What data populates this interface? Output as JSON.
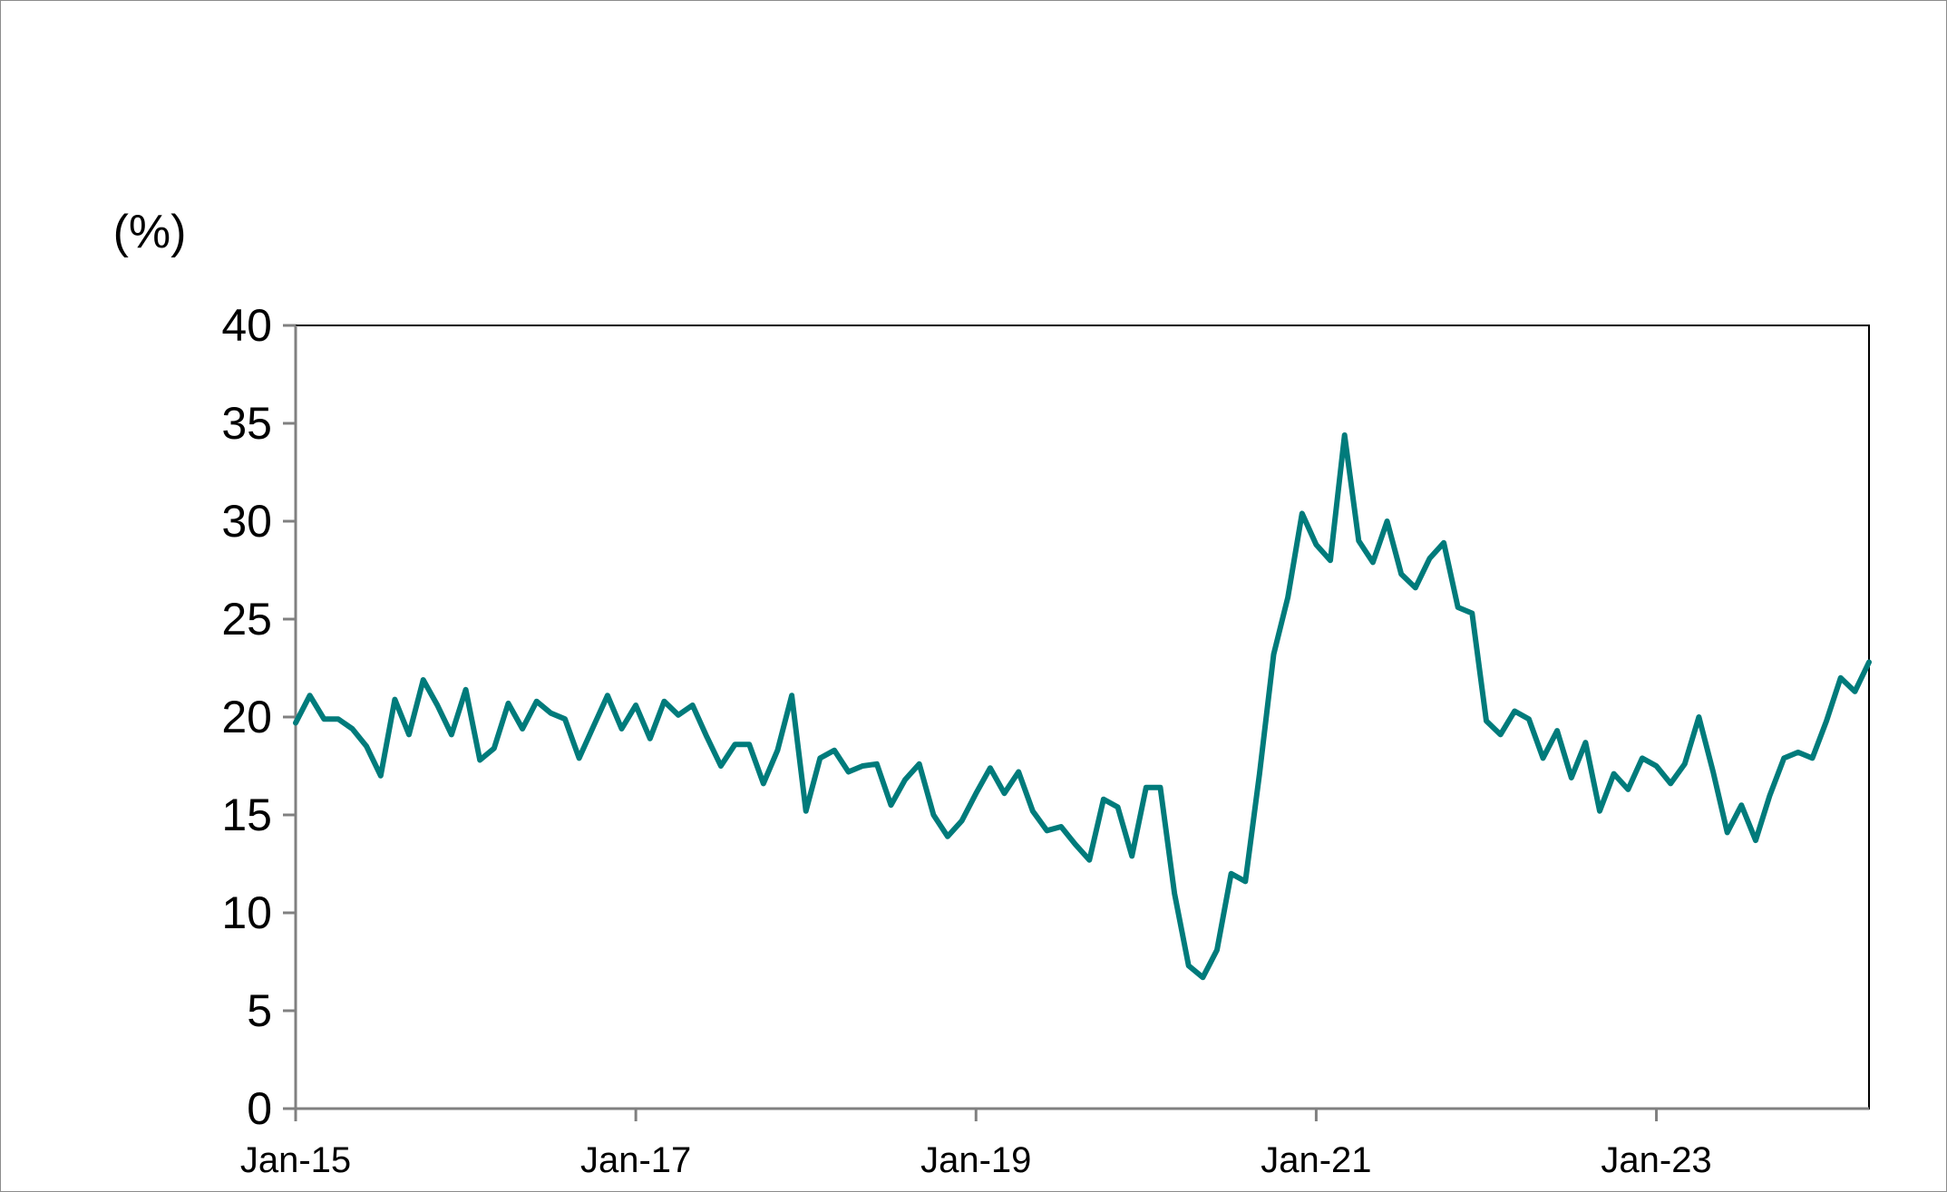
{
  "chart_data": {
    "type": "line",
    "unit_label": "(%)",
    "ylim": [
      0,
      40
    ],
    "yticks": [
      0,
      5,
      10,
      15,
      20,
      25,
      30,
      35,
      40
    ],
    "ytick_labels": [
      "0",
      "5",
      "10",
      "15",
      "20",
      "25",
      "30",
      "35",
      "40"
    ],
    "xticks": [
      "2015-01",
      "2017-01",
      "2019-01",
      "2021-01",
      "2023-01"
    ],
    "xtick_labels": [
      "Jan-15",
      "Jan-17",
      "Jan-19",
      "Jan-21",
      "Jan-23"
    ],
    "x_start": "2015-01",
    "x_end": "2024-04",
    "grid": false,
    "legend": "none",
    "colors": {
      "series": "#007b7b",
      "axis": "#808080",
      "frame": "#8c8c8c"
    },
    "series": [
      {
        "x": [
          "2015-01",
          "2015-02",
          "2015-03",
          "2015-04",
          "2015-05",
          "2015-06",
          "2015-07",
          "2015-08",
          "2015-09",
          "2015-10",
          "2015-11",
          "2015-12",
          "2016-01",
          "2016-02",
          "2016-03",
          "2016-04",
          "2016-05",
          "2016-06",
          "2016-07",
          "2016-08",
          "2016-09",
          "2016-10",
          "2016-11",
          "2016-12",
          "2017-01",
          "2017-02",
          "2017-03",
          "2017-04",
          "2017-05",
          "2017-06",
          "2017-07",
          "2017-08",
          "2017-09",
          "2017-10",
          "2017-11",
          "2017-12",
          "2018-01",
          "2018-02",
          "2018-03",
          "2018-04",
          "2018-05",
          "2018-06",
          "2018-07",
          "2018-08",
          "2018-09",
          "2018-10",
          "2018-11",
          "2018-12",
          "2019-01",
          "2019-02",
          "2019-03",
          "2019-04",
          "2019-05",
          "2019-06",
          "2019-07",
          "2019-08",
          "2019-09",
          "2019-10",
          "2019-11",
          "2019-12",
          "2020-01",
          "2020-02",
          "2020-03",
          "2020-04",
          "2020-05",
          "2020-06",
          "2020-07",
          "2020-08",
          "2020-09",
          "2020-10",
          "2020-11",
          "2020-12",
          "2021-01",
          "2021-02",
          "2021-03",
          "2021-04",
          "2021-05",
          "2021-06",
          "2021-07",
          "2021-08",
          "2021-09",
          "2021-10",
          "2021-11",
          "2021-12",
          "2022-01",
          "2022-02",
          "2022-03",
          "2022-04",
          "2022-05",
          "2022-06",
          "2022-07",
          "2022-08",
          "2022-09",
          "2022-10",
          "2022-11",
          "2022-12",
          "2023-01",
          "2023-02",
          "2023-03",
          "2023-04",
          "2023-05",
          "2023-06",
          "2023-07",
          "2023-08",
          "2023-09",
          "2023-10",
          "2023-11",
          "2023-12",
          "2024-01",
          "2024-02",
          "2024-03",
          "2024-04"
        ],
        "values": [
          19.7,
          21.1,
          19.9,
          19.9,
          19.4,
          18.5,
          17.0,
          20.9,
          19.1,
          21.9,
          20.6,
          19.1,
          21.4,
          17.8,
          18.4,
          20.7,
          19.4,
          20.8,
          20.2,
          19.9,
          17.9,
          19.5,
          21.1,
          19.4,
          20.6,
          18.9,
          20.8,
          20.1,
          20.6,
          19.0,
          17.5,
          18.6,
          18.6,
          16.6,
          18.3,
          21.1,
          15.2,
          17.9,
          18.3,
          17.2,
          17.5,
          17.6,
          15.5,
          16.8,
          17.6,
          15.0,
          13.9,
          14.7,
          16.1,
          17.4,
          16.1,
          17.2,
          15.2,
          14.2,
          14.4,
          13.5,
          12.7,
          15.8,
          15.4,
          12.9,
          16.4,
          16.4,
          11.0,
          7.3,
          6.7,
          8.1,
          12.0,
          11.6,
          17.1,
          23.2,
          26.1,
          30.4,
          28.8,
          28.0,
          34.4,
          29.0,
          27.9,
          30.0,
          27.3,
          26.6,
          28.1,
          28.9,
          25.6,
          25.3,
          19.8,
          19.1,
          20.3,
          19.9,
          17.9,
          19.3,
          16.9,
          18.7,
          15.2,
          17.1,
          16.3,
          17.9,
          17.5,
          16.6,
          17.6,
          20.0,
          17.2,
          14.1,
          15.5,
          13.7,
          16.0,
          17.9,
          18.2,
          17.9,
          19.8,
          22.0,
          21.3,
          22.8
        ]
      }
    ]
  }
}
